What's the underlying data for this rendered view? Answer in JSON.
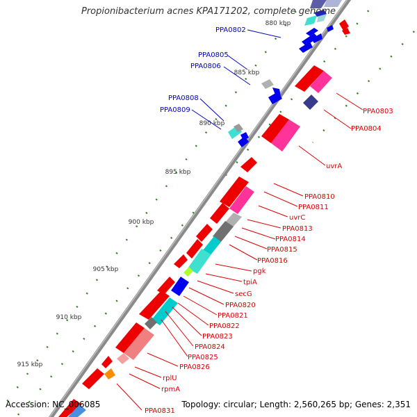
{
  "title": "Propionibacterium acnes KPA171202, complete genome",
  "footer": {
    "accession": "Accession: NC_006085",
    "topology": "Topology: circular; Length: 2,560,265 bp; Genes: 2,351"
  },
  "colors": {
    "backbone": "#8a8a8a",
    "forward_label": "#0000cc",
    "reverse_label": "#dd0000",
    "tick": "#2e7d1e"
  },
  "scale_labels": [
    "880 kbp",
    "885 kbp",
    "890 kbp",
    "895 kbp",
    "900 kbp",
    "905 kbp",
    "910 kbp",
    "915 kbp"
  ],
  "forward_genes": [
    "PPA0802",
    "PPA0805",
    "PPA0806",
    "PPA0808",
    "PPA0809"
  ],
  "reverse_genes": [
    "PPA0803",
    "PPA0804",
    "uvrA",
    "PPA0810",
    "PPA0811",
    "uvrC",
    "PPA0813",
    "PPA0814",
    "PPA0815",
    "PPA0816",
    "pgk",
    "tpiA",
    "secG",
    "PPA0820",
    "PPA0821",
    "PPA0822",
    "PPA0823",
    "PPA0824",
    "PPA0825",
    "PPA0826",
    "rplU",
    "rpmA",
    "PPA0831"
  ]
}
